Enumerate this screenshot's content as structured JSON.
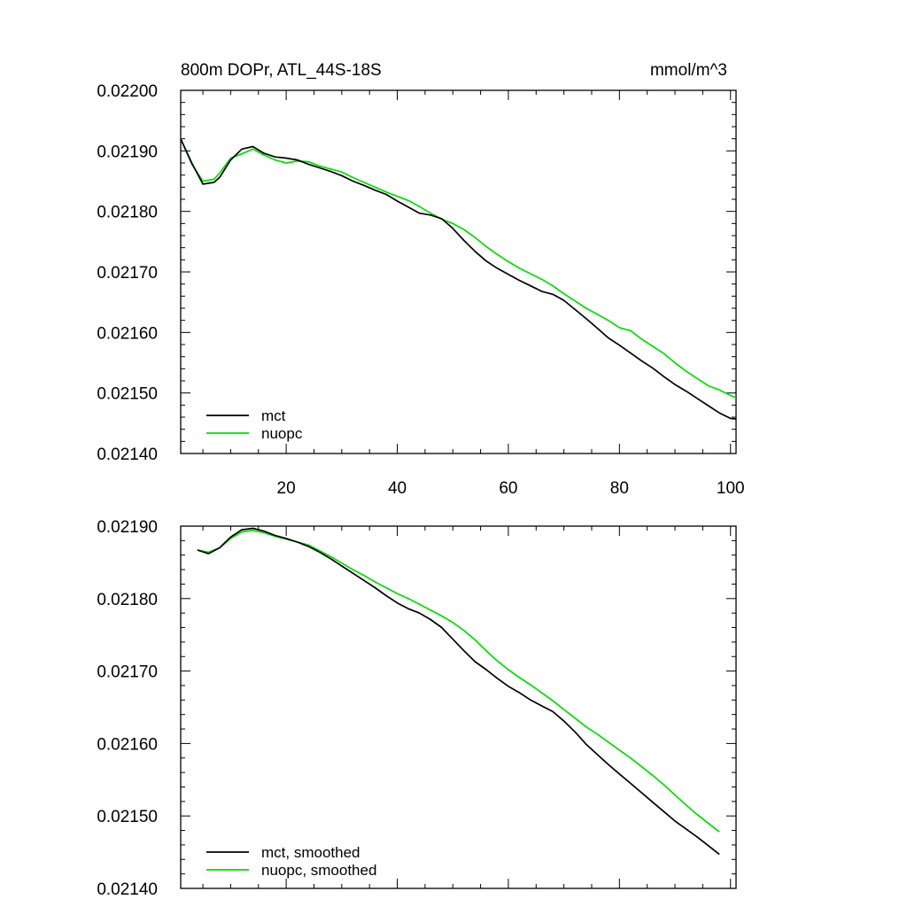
{
  "colors": {
    "mct": "#000000",
    "nuopc": "#00dd00",
    "axis": "#000000",
    "background": "#ffffff"
  },
  "chart_data": [
    {
      "type": "line",
      "title_left": "800m DOPr, ATL_44S-18S",
      "title_right": "mmol/m^3",
      "xlim": [
        1,
        101
      ],
      "ylim": [
        0.0214,
        0.022
      ],
      "yticks": [
        0.0214,
        0.0215,
        0.0216,
        0.0217,
        0.0218,
        0.0219,
        0.022
      ],
      "ytick_labels": [
        "0.02140",
        "0.02150",
        "0.02160",
        "0.02170",
        "0.02180",
        "0.02190",
        "0.02200"
      ],
      "xticks": [
        20,
        40,
        60,
        80,
        100
      ],
      "xtick_labels": [
        "20",
        "40",
        "60",
        "80",
        "100"
      ],
      "legend_position": "bottom-left",
      "series": [
        {
          "name": "mct",
          "color_key": "mct",
          "x": [
            1,
            3,
            5,
            7,
            8,
            10,
            12,
            14,
            16,
            18,
            20,
            22,
            24,
            26,
            28,
            30,
            32,
            34,
            36,
            38,
            40,
            42,
            44,
            46,
            48,
            50,
            52,
            54,
            56,
            58,
            60,
            62,
            64,
            66,
            68,
            70,
            72,
            74,
            76,
            78,
            80,
            82,
            84,
            86,
            88,
            90,
            92,
            94,
            96,
            98,
            100,
            101
          ],
          "values": [
            0.02192,
            0.02188,
            0.021845,
            0.021848,
            0.021856,
            0.021885,
            0.021903,
            0.021907,
            0.021896,
            0.02189,
            0.021888,
            0.021885,
            0.021878,
            0.021872,
            0.021866,
            0.021859,
            0.02185,
            0.021843,
            0.021835,
            0.021828,
            0.021817,
            0.021807,
            0.021797,
            0.021794,
            0.021788,
            0.021772,
            0.021752,
            0.021734,
            0.021718,
            0.021706,
            0.021696,
            0.021686,
            0.021677,
            0.021668,
            0.021663,
            0.021653,
            0.021638,
            0.021623,
            0.021607,
            0.021591,
            0.021579,
            0.021566,
            0.021553,
            0.021541,
            0.021527,
            0.021514,
            0.021503,
            0.021491,
            0.021479,
            0.021467,
            0.021458,
            0.021457
          ]
        },
        {
          "name": "nuopc",
          "color_key": "nuopc",
          "x": [
            1,
            3,
            5,
            7,
            8,
            10,
            12,
            14,
            16,
            18,
            20,
            22,
            24,
            26,
            28,
            30,
            32,
            34,
            36,
            38,
            40,
            42,
            44,
            46,
            48,
            50,
            52,
            54,
            56,
            58,
            60,
            62,
            64,
            66,
            68,
            70,
            72,
            74,
            76,
            78,
            80,
            82,
            84,
            86,
            88,
            90,
            92,
            94,
            96,
            98,
            100,
            101
          ],
          "values": [
            0.02192,
            0.021878,
            0.02185,
            0.021853,
            0.021863,
            0.021888,
            0.021895,
            0.021903,
            0.021893,
            0.021885,
            0.02188,
            0.021883,
            0.021882,
            0.021875,
            0.02187,
            0.021865,
            0.021856,
            0.021848,
            0.02184,
            0.021832,
            0.021825,
            0.021818,
            0.021808,
            0.021797,
            0.021787,
            0.02178,
            0.02177,
            0.021757,
            0.021742,
            0.021729,
            0.021717,
            0.021706,
            0.021697,
            0.021688,
            0.021677,
            0.021664,
            0.021652,
            0.02164,
            0.02163,
            0.02162,
            0.021608,
            0.021603,
            0.021589,
            0.021577,
            0.021565,
            0.02155,
            0.021536,
            0.021524,
            0.021512,
            0.021505,
            0.021496,
            0.021492
          ]
        }
      ]
    },
    {
      "type": "line",
      "xlim": [
        1,
        101
      ],
      "ylim": [
        0.0214,
        0.0219
      ],
      "yticks": [
        0.0214,
        0.0215,
        0.0216,
        0.0217,
        0.0218,
        0.0219
      ],
      "ytick_labels": [
        "0.02140",
        "0.02150",
        "0.02160",
        "0.02170",
        "0.02180",
        "0.02190"
      ],
      "xticks": [
        20,
        40,
        60,
        80,
        100
      ],
      "xtick_labels": [],
      "legend_position": "bottom-left",
      "series": [
        {
          "name": "mct, smoothed",
          "color_key": "mct",
          "x": [
            4,
            6,
            8,
            10,
            12,
            14,
            16,
            18,
            20,
            22,
            24,
            26,
            28,
            30,
            32,
            34,
            36,
            38,
            40,
            42,
            44,
            46,
            48,
            50,
            52,
            54,
            56,
            58,
            60,
            62,
            64,
            66,
            68,
            70,
            72,
            74,
            76,
            78,
            80,
            82,
            84,
            86,
            88,
            90,
            92,
            94,
            96,
            98
          ],
          "values": [
            0.021867,
            0.021862,
            0.02187,
            0.021885,
            0.021895,
            0.021897,
            0.021893,
            0.021887,
            0.021883,
            0.021878,
            0.021872,
            0.021864,
            0.021855,
            0.021845,
            0.021835,
            0.021825,
            0.021815,
            0.021804,
            0.021794,
            0.021786,
            0.02178,
            0.021771,
            0.02176,
            0.021744,
            0.021728,
            0.021713,
            0.021702,
            0.02169,
            0.021679,
            0.02167,
            0.02166,
            0.021652,
            0.021644,
            0.021631,
            0.021616,
            0.021599,
            0.021585,
            0.021571,
            0.021558,
            0.021545,
            0.021532,
            0.021519,
            0.021506,
            0.021493,
            0.021482,
            0.021471,
            0.021459,
            0.021447
          ]
        },
        {
          "name": "nuopc, smoothed",
          "color_key": "nuopc",
          "x": [
            4,
            6,
            8,
            10,
            12,
            14,
            16,
            18,
            20,
            22,
            24,
            26,
            28,
            30,
            32,
            34,
            36,
            38,
            40,
            42,
            44,
            46,
            48,
            50,
            52,
            54,
            56,
            58,
            60,
            62,
            64,
            66,
            68,
            70,
            72,
            74,
            76,
            78,
            80,
            82,
            84,
            86,
            88,
            90,
            92,
            94,
            96,
            98
          ],
          "values": [
            0.021867,
            0.021864,
            0.02187,
            0.021883,
            0.021892,
            0.021894,
            0.021891,
            0.021886,
            0.021882,
            0.021878,
            0.021874,
            0.021866,
            0.021858,
            0.021849,
            0.02184,
            0.021832,
            0.021823,
            0.021815,
            0.021807,
            0.0218,
            0.021792,
            0.021784,
            0.021776,
            0.021767,
            0.021756,
            0.021743,
            0.021728,
            0.021714,
            0.021702,
            0.021691,
            0.021681,
            0.02167,
            0.021659,
            0.021647,
            0.021635,
            0.021623,
            0.021613,
            0.021602,
            0.021591,
            0.02158,
            0.021568,
            0.021556,
            0.021543,
            0.021529,
            0.021515,
            0.021502,
            0.02149,
            0.021478
          ]
        }
      ]
    }
  ]
}
